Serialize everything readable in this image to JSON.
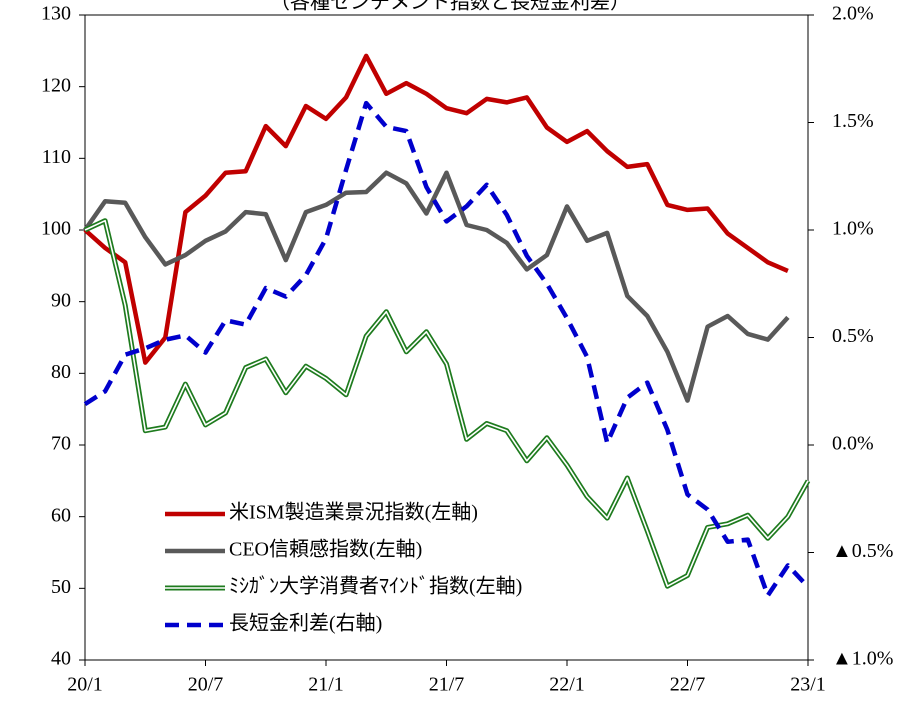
{
  "chart_data": {
    "type": "line",
    "title": "（各種センチメント指数と長短金利差）",
    "categories": [
      "20/1",
      null,
      null,
      null,
      null,
      null,
      "20/7",
      null,
      null,
      null,
      null,
      null,
      "21/1",
      null,
      null,
      null,
      null,
      null,
      "21/7",
      null,
      null,
      null,
      null,
      null,
      "22/1",
      null,
      null,
      null,
      null,
      null,
      "22/7",
      null,
      null,
      null,
      null,
      null,
      "23/1"
    ],
    "ylim": [
      40,
      130
    ],
    "yticks": [
      40,
      50,
      60,
      70,
      80,
      90,
      100,
      110,
      120,
      130
    ],
    "y2lim": [
      -1.0,
      2.0
    ],
    "y2ticks": [
      {
        "value": -1.0,
        "label": "▲1.0%"
      },
      {
        "value": -0.5,
        "label": "▲0.5%"
      },
      {
        "value": 0.0,
        "label": "0.0%"
      },
      {
        "value": 0.5,
        "label": "0.5%"
      },
      {
        "value": 1.0,
        "label": "1.0%"
      },
      {
        "value": 1.5,
        "label": "1.5%"
      },
      {
        "value": 2.0,
        "label": "2.0%"
      }
    ],
    "negative_tick_color": "#ff0000",
    "legend": "lower left",
    "series": [
      {
        "name": "米ISM製造業景況指数(左軸)",
        "color": "#c00000",
        "style": "solid",
        "values": [
          100,
          97.5,
          95.5,
          81.5,
          85,
          102.5,
          104.8,
          108,
          108.2,
          114.5,
          111.7,
          117.3,
          115.5,
          118.5,
          124.3,
          119,
          120.5,
          119,
          117,
          116.3,
          118.3,
          117.8,
          118.5,
          114.3,
          112.3,
          113.8,
          111,
          108.8,
          109.2,
          103.5,
          102.8,
          103,
          99.5,
          97.5,
          95.5,
          94.3,
          null
        ]
      },
      {
        "name": "CEO信頼感指数(左軸)",
        "color": "#595959",
        "style": "solid",
        "values": [
          100,
          104,
          103.8,
          99,
          95.2,
          96.5,
          98.5,
          99.8,
          102.5,
          102.2,
          95.8,
          102.5,
          103.5,
          105.2,
          105.3,
          108,
          106.5,
          102.3,
          108,
          100.7,
          100,
          98.2,
          94.5,
          96.5,
          103.3,
          98.5,
          99.6,
          90.8,
          88,
          83,
          76.2,
          86.5,
          88,
          85.5,
          84.7,
          87.8,
          null
        ]
      },
      {
        "name": "ﾐｼｶﾞﾝ大学消費者ﾏｲﾝﾄﾞ指数(左軸)",
        "color": "#1e7b1e",
        "style": "double",
        "values": [
          100,
          101.3,
          89.5,
          72,
          72.5,
          78.5,
          72.8,
          74.5,
          80.8,
          82,
          77.3,
          81,
          79.3,
          77,
          85.2,
          88.6,
          83,
          85.8,
          81.3,
          70.8,
          73,
          72,
          67.8,
          71,
          67.2,
          62.8,
          59.8,
          65.4,
          58,
          50.3,
          51.8,
          58.5,
          59,
          60.2,
          57,
          60,
          65
        ]
      },
      {
        "name": "長短金利差(右軸)",
        "color": "#0000cc",
        "style": "dashed",
        "axis": "y2",
        "values": [
          0.19,
          0.25,
          0.42,
          0.45,
          0.49,
          0.51,
          0.43,
          0.58,
          0.56,
          0.73,
          0.69,
          0.79,
          0.96,
          1.28,
          1.59,
          1.48,
          1.46,
          1.2,
          1.04,
          1.11,
          1.21,
          1.07,
          0.88,
          0.75,
          0.59,
          0.41,
          0.01,
          0.22,
          0.29,
          0.07,
          -0.23,
          -0.3,
          -0.45,
          -0.44,
          -0.7,
          -0.56,
          -0.66
        ]
      }
    ]
  }
}
